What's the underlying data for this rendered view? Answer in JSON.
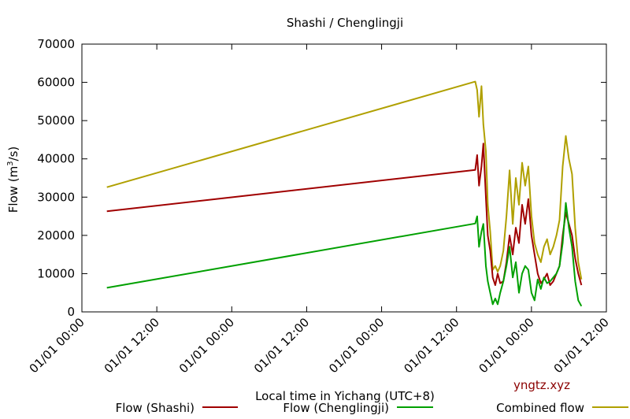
{
  "chart_data": {
    "type": "line",
    "title": "Shashi / Chenglingji",
    "xlabel": "Local time in Yichang (UTC+8)",
    "ylabel_main": "Flow (m",
    "ylabel_sup": "3",
    "ylabel_end": "/s)",
    "x_ticks": [
      "01/01 00:00",
      "01/01 12:00",
      "01/01 00:00",
      "01/01 12:00",
      "01/01 00:00",
      "01/01 12:00",
      "01/01 00:00",
      "01/01 12:00"
    ],
    "y_ticks": [
      "0",
      "10000",
      "20000",
      "30000",
      "40000",
      "50000",
      "60000",
      "70000"
    ],
    "ylim": [
      0,
      70000
    ],
    "x_unit_note": "hours from first x tick",
    "xlim": [
      0,
      84
    ],
    "grid": false,
    "legend_position": "bottom",
    "watermark": "yngtz.xyz",
    "series": [
      {
        "name": "Flow (Shashi)",
        "color": "#a00000",
        "x": [
          4,
          63,
          63.3,
          63.6,
          64,
          64.3,
          64.7,
          65,
          65.4,
          65.8,
          66.2,
          66.6,
          67,
          67.5,
          68,
          68.5,
          69,
          69.5,
          70,
          70.5,
          71,
          71.5,
          72,
          72.5,
          73,
          73.5,
          74,
          74.5,
          75,
          75.5,
          76,
          76.5,
          77,
          77.5,
          78,
          78.5,
          79,
          79.5,
          80
        ],
        "y": [
          26300,
          37100,
          41000,
          33000,
          38000,
          44000,
          30000,
          20000,
          16000,
          9000,
          7000,
          10000,
          7500,
          8000,
          13000,
          20000,
          15000,
          22000,
          18000,
          28000,
          23000,
          29500,
          20000,
          15000,
          10000,
          7500,
          8500,
          10000,
          7000,
          8000,
          10000,
          12000,
          20000,
          26000,
          23000,
          20000,
          14000,
          10000,
          7000
        ]
      },
      {
        "name": "Flow (Chenglingji)",
        "color": "#00a000",
        "x": [
          4,
          63,
          63.3,
          63.6,
          64,
          64.3,
          64.7,
          65,
          65.4,
          65.8,
          66.2,
          66.6,
          67,
          67.5,
          68,
          68.5,
          69,
          69.5,
          70,
          70.5,
          71,
          71.5,
          72,
          72.5,
          73,
          73.5,
          74,
          74.5,
          75,
          75.5,
          76,
          76.5,
          77,
          77.5,
          78,
          78.5,
          79,
          79.5,
          80
        ],
        "y": [
          6300,
          23100,
          25000,
          17000,
          21000,
          23000,
          12000,
          8000,
          5000,
          2000,
          3500,
          2000,
          5000,
          8000,
          12000,
          17000,
          9000,
          13000,
          5000,
          10000,
          12000,
          11000,
          5000,
          3000,
          8500,
          6000,
          9000,
          7500,
          8000,
          9000,
          10000,
          12000,
          18000,
          28500,
          22000,
          17000,
          8000,
          3000,
          1500
        ]
      },
      {
        "name": "Combined flow",
        "color": "#b0a000",
        "x": [
          4,
          63,
          63.3,
          63.6,
          64,
          64.3,
          64.7,
          65,
          65.4,
          65.8,
          66.2,
          66.6,
          67,
          67.5,
          68,
          68.5,
          69,
          69.5,
          70,
          70.5,
          71,
          71.5,
          72,
          72.5,
          73,
          73.5,
          74,
          74.5,
          75,
          75.5,
          76,
          76.5,
          77,
          77.5,
          78,
          78.5,
          79,
          79.5,
          80
        ],
        "y": [
          32600,
          60200,
          58000,
          51000,
          59000,
          49000,
          42000,
          28000,
          21000,
          11000,
          12000,
          10500,
          12000,
          16000,
          25000,
          37000,
          23000,
          35000,
          28000,
          39000,
          33000,
          38000,
          25000,
          18000,
          15000,
          13000,
          17000,
          19000,
          15000,
          17000,
          20000,
          24000,
          38000,
          46000,
          40000,
          36000,
          22000,
          13000,
          8500
        ]
      }
    ]
  }
}
